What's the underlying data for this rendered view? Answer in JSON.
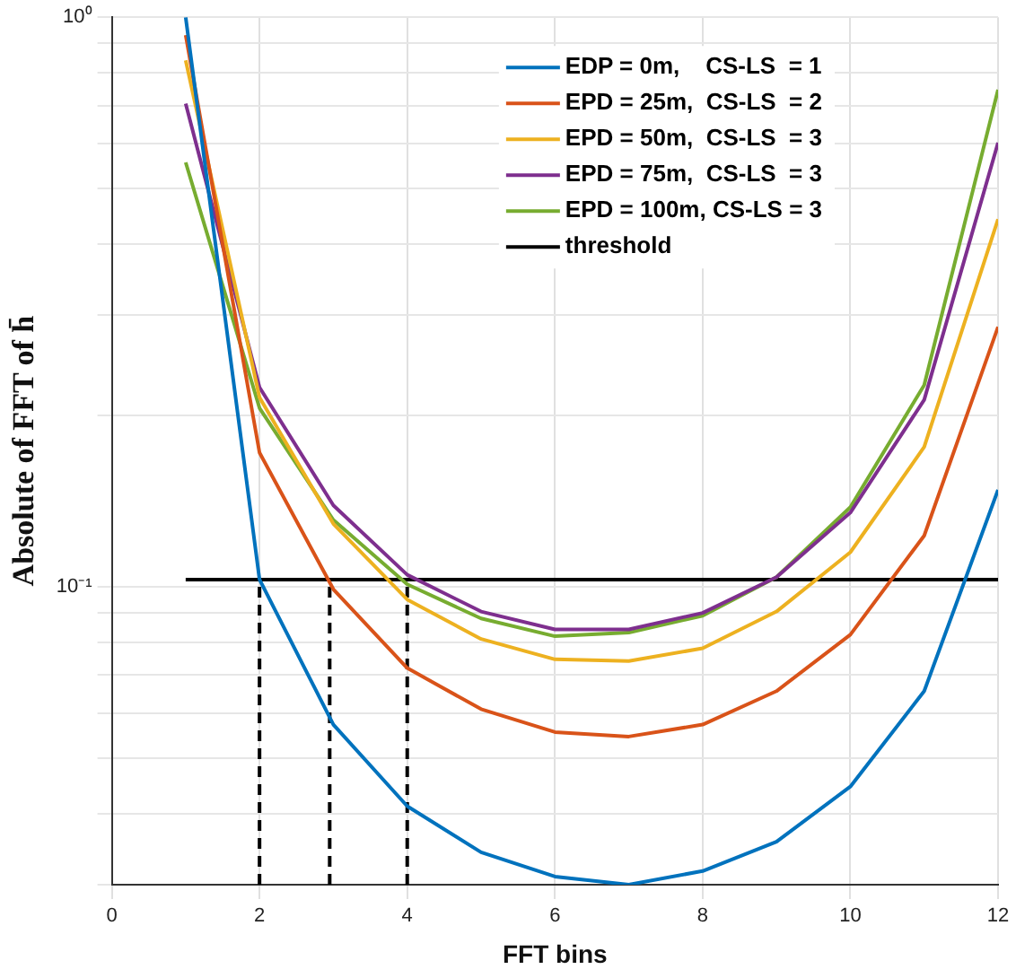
{
  "chart_data": {
    "type": "line",
    "xlabel": "FFT bins",
    "ylabel": "Absolute of FFT of h̄",
    "x": [
      1,
      2,
      3,
      4,
      5,
      6,
      7,
      8,
      9,
      10,
      11,
      12
    ],
    "xlim": [
      0,
      12
    ],
    "xticks": [
      0,
      2,
      4,
      6,
      8,
      10,
      12
    ],
    "ylim": [
      0.03,
      1
    ],
    "yticks": [
      {
        "value": 0.03,
        "label": null
      },
      {
        "value": 0.04,
        "label": null
      },
      {
        "value": 0.05,
        "label": null
      },
      {
        "value": 0.06,
        "label": null
      },
      {
        "value": 0.07,
        "label": null
      },
      {
        "value": 0.08,
        "label": null
      },
      {
        "value": 0.09,
        "label": null
      },
      {
        "value": 0.1,
        "label": "10⁻¹"
      },
      {
        "value": 0.2,
        "label": null
      },
      {
        "value": 0.3,
        "label": null
      },
      {
        "value": 0.4,
        "label": null
      },
      {
        "value": 0.5,
        "label": null
      },
      {
        "value": 0.6,
        "label": null
      },
      {
        "value": 0.7,
        "label": null
      },
      {
        "value": 0.8,
        "label": null
      },
      {
        "value": 0.9,
        "label": null
      },
      {
        "value": 1,
        "label": "10⁰"
      }
    ],
    "log": "y",
    "grid": true,
    "legend": "top right",
    "marker": "none",
    "line_style": "solid",
    "series": [
      {
        "name": "EDP = 0m,    CS-LS  = 1",
        "color": "#0072bd",
        "values": [
          1.0,
          0.103,
          0.0573,
          0.0412,
          0.0342,
          0.031,
          0.03,
          0.0317,
          0.0357,
          0.0446,
          0.0656,
          0.148
        ]
      },
      {
        "name": "EPD = 25m,  CS-LS  = 2",
        "color": "#d95319",
        "values": [
          0.93,
          0.172,
          0.099,
          0.072,
          0.061,
          0.0556,
          0.0546,
          0.0573,
          0.0656,
          0.0824,
          0.123,
          0.286
        ]
      },
      {
        "name": "EPD = 50m,  CS-LS  = 3",
        "color": "#edb120",
        "values": [
          0.84,
          0.215,
          0.129,
          0.095,
          0.081,
          0.0746,
          0.0741,
          0.078,
          0.0905,
          0.115,
          0.176,
          0.442
        ]
      },
      {
        "name": "EPD = 75m,  CS-LS  = 3",
        "color": "#7e2f8e",
        "values": [
          0.705,
          0.224,
          0.139,
          0.105,
          0.0905,
          0.0842,
          0.0842,
          0.09,
          0.104,
          0.135,
          0.213,
          0.602
        ]
      },
      {
        "name": "EPD = 100m, CS-LS = 3",
        "color": "#77ac30",
        "values": [
          0.556,
          0.206,
          0.131,
          0.101,
          0.088,
          0.0819,
          0.0831,
          0.089,
          0.104,
          0.138,
          0.226,
          0.746
        ]
      },
      {
        "name": "threshold",
        "color": "#000000",
        "x": [
          1,
          12
        ],
        "values": [
          0.103,
          0.103
        ]
      },
      {
        "color": "#000000",
        "line_style": "dashed",
        "x": [
          2,
          2
        ],
        "values": [
          0.03,
          0.103
        ]
      },
      {
        "color": "#000000",
        "line_style": "dashed",
        "x": [
          2.95,
          2.95
        ],
        "values": [
          0.03,
          0.103
        ]
      },
      {
        "color": "#000000",
        "line_style": "dashed",
        "x": [
          4,
          4
        ],
        "values": [
          0.03,
          0.103
        ]
      }
    ]
  }
}
